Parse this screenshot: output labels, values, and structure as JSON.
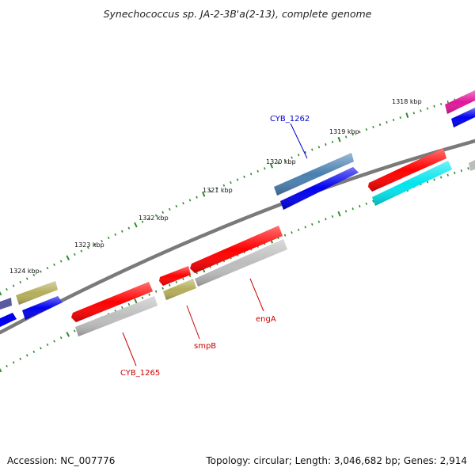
{
  "title": "Synechococcus sp. JA-2-3B'a(2-13), complete genome",
  "footer": {
    "accession": "Accession: NC_007776",
    "summary": "Topology: circular; Length: 3,046,682 bp; Genes: 2,914"
  },
  "ruler": {
    "tick_color": "#2e8b2e",
    "kbp_labels": [
      "1318 kbp",
      "1319 kbp",
      "1320 kbp",
      "1321 kbp",
      "1322 kbp",
      "1323 kbp",
      "1324 kbp"
    ]
  },
  "gene_labels": [
    {
      "text": "CYB_1262",
      "color": "#0000cc"
    },
    {
      "text": "engA",
      "color": "#cc0000"
    },
    {
      "text": "smpB",
      "color": "#cc0000"
    },
    {
      "text": "CYB_1265",
      "color": "#cc0000"
    }
  ],
  "colors": {
    "backbone": "#7a7a7a",
    "red": "#ff0000",
    "blue": "#0000ee",
    "steelblue": "#4a7fb0",
    "cyan": "#00e5ee",
    "grey": "#bdbdbd",
    "olive": "#b5ad5a",
    "magenta": "#e0169a",
    "slateblue": "#5a5aa0"
  }
}
